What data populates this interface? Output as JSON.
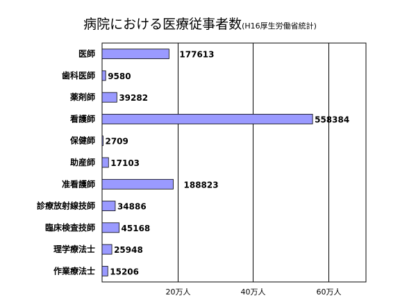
{
  "chart_data": {
    "type": "bar",
    "orientation": "horizontal",
    "title": "病院における医療従事者数",
    "subtitle": "(H16厚生労働省統計)",
    "categories": [
      "医師",
      "歯科医師",
      "薬剤師",
      "看護師",
      "保健師",
      "助産師",
      "准看護師",
      "診療放射線技師",
      "臨床検査技師",
      "理学療法士",
      "作業療法士"
    ],
    "values": [
      177613,
      9580,
      39282,
      558384,
      2709,
      17103,
      188823,
      34886,
      45168,
      25948,
      15206
    ],
    "value_labels": [
      "177613",
      "9580",
      "39282",
      "558384",
      "2709",
      "17103",
      "188823",
      "34886",
      "45168",
      "25948",
      "15206"
    ],
    "xlim": [
      0,
      700000
    ],
    "x_ticks": [
      200000,
      400000,
      600000
    ],
    "x_tick_labels": [
      "20万人",
      "40万人",
      "60万人"
    ],
    "grid": true,
    "bar_color": "#9a9aff",
    "bar_edge_color": "#000000"
  }
}
